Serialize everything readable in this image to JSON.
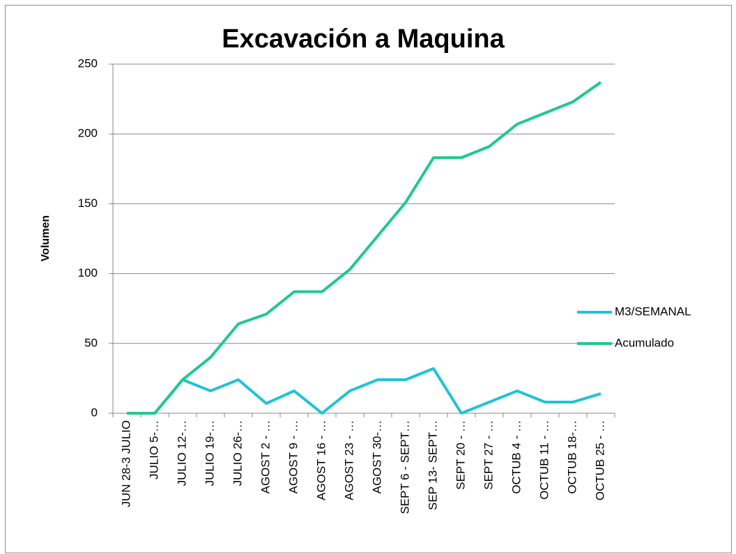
{
  "chart_data": {
    "type": "line",
    "title": "Excavación a Maquina",
    "y_label": "Volumen",
    "categories": [
      "JUN 28-3 JULIO",
      "JULIO 5-…",
      "JULIO 12-…",
      "JULIO 19-…",
      "JULIO 26-…",
      "AGOST 2 - …",
      "AGOST 9 - …",
      "AGOST 16 - …",
      "AGOST 23 - …",
      "AGOST 30-…",
      "SEPT 6 - SEPT…",
      "SEP 13- SEPT…",
      "SEPT 20 - …",
      "SEPT 27 - …",
      "OCTUB 4 - …",
      "OCTUB 11 - …",
      "OCTUB 18-…",
      "OCTUB 25 - …"
    ],
    "series": [
      {
        "name": "M3/SEMANAL",
        "color": "#1fc3d6",
        "values": [
          0,
          0,
          24,
          16,
          24,
          7,
          16,
          0,
          16,
          24,
          24,
          32,
          0,
          8,
          16,
          8,
          8,
          14
        ]
      },
      {
        "name": "Acumulado",
        "color": "#1ec98f",
        "values": [
          0,
          0,
          24,
          40,
          64,
          71,
          87,
          87,
          103,
          127,
          151,
          183,
          183,
          191,
          207,
          215,
          223,
          237
        ]
      }
    ],
    "ylim": [
      0,
      250
    ],
    "yticks": [
      0,
      50,
      100,
      150,
      200,
      250
    ],
    "grid": true,
    "legend": "right"
  }
}
